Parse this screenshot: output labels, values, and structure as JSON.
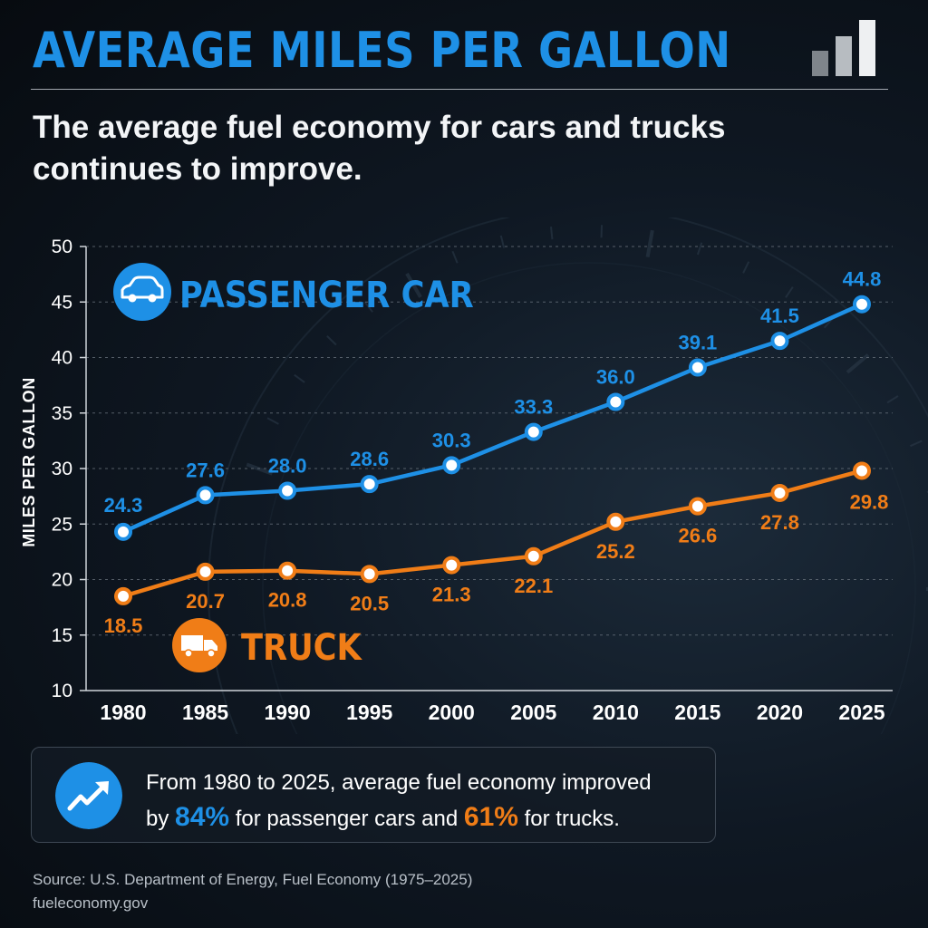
{
  "header": {
    "title": "AVERAGE MILES PER GALLON",
    "subtitle": "The average fuel economy for cars and trucks continues to improve."
  },
  "icons": {
    "logo": "bar-chart-icon",
    "car": "car-icon",
    "truck": "truck-icon",
    "trend": "trend-up-icon"
  },
  "colors": {
    "title": "#1e90e6",
    "car": "#1e90e6",
    "truck": "#f07d17",
    "grid": "#6d7680",
    "text": "#ffffff"
  },
  "chart_data": {
    "type": "line",
    "x": [
      "1980",
      "1985",
      "1990",
      "1995",
      "2000",
      "2005",
      "2010",
      "2015",
      "2020",
      "2025"
    ],
    "ylabel": "MILES PER GALLON",
    "ylim": [
      10,
      50
    ],
    "yticks": [
      10,
      15,
      20,
      25,
      30,
      35,
      40,
      45,
      50
    ],
    "grid": true,
    "series": [
      {
        "name": "PASSENGER CAR",
        "color": "#1e90e6",
        "icon": "car-icon",
        "values": [
          24.3,
          27.6,
          28.0,
          28.6,
          30.3,
          33.3,
          36.0,
          39.1,
          41.5,
          44.8
        ]
      },
      {
        "name": "TRUCK",
        "color": "#f07d17",
        "icon": "truck-icon",
        "values": [
          18.5,
          20.7,
          20.8,
          20.5,
          21.3,
          22.1,
          25.2,
          26.6,
          27.8,
          29.8
        ]
      }
    ]
  },
  "summary": {
    "line1": "From 1980 to 2025, average fuel economy improved",
    "prefix": "by",
    "car_pct": "84%",
    "middle": "for passenger cars and",
    "truck_pct": "61%",
    "suffix": "for trucks."
  },
  "source": {
    "line1": "Source: U.S. Department of Energy, Fuel Economy (1975–2025)",
    "line2": "fueleconomy.gov"
  }
}
